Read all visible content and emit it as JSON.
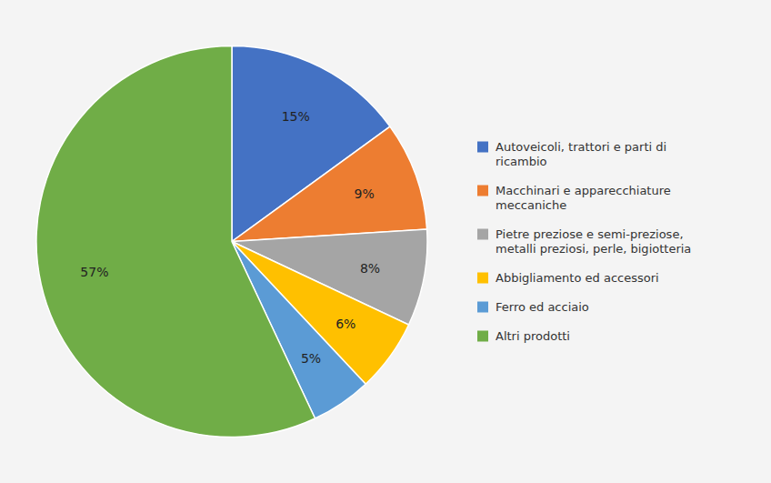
{
  "chart_data": {
    "type": "pie",
    "categories": [
      "Autoveicoli, trattori e parti di\nricambio",
      "Macchinari e apparecchiature\nmeccaniche",
      "Pietre preziose e semi-preziose,\nmetalli preziosi, perle, bigiotteria",
      "Abbigliamento ed accessori",
      "Ferro ed acciaio",
      "Altri prodotti"
    ],
    "values": [
      15,
      9,
      8,
      6,
      5,
      57
    ],
    "value_labels": [
      "15%",
      "9%",
      "8%",
      "6%",
      "5%",
      "57%"
    ],
    "colors": [
      "#4472C4",
      "#ED7D31",
      "#A5A5A5",
      "#FFC000",
      "#5B9BD5",
      "#70AD47"
    ],
    "data_labels": true,
    "legend": "right"
  }
}
